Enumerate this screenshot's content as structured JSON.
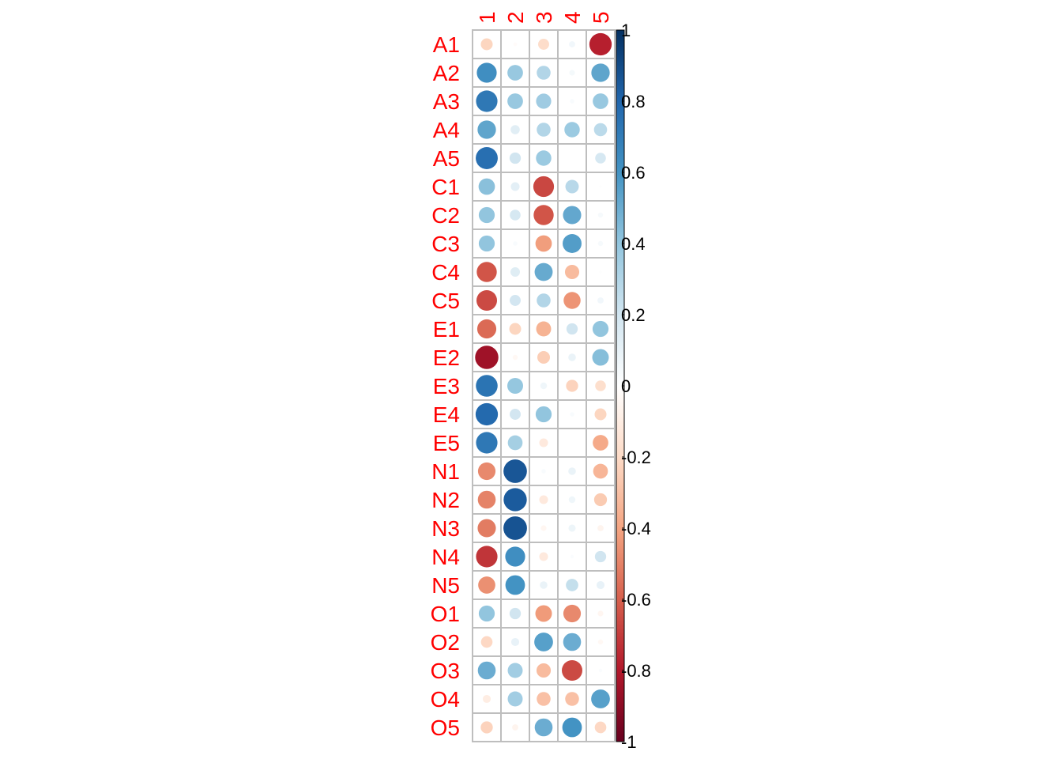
{
  "chart_data": {
    "type": "heatmap",
    "style": "circle",
    "columns": [
      "1",
      "2",
      "3",
      "4",
      "5"
    ],
    "rows": [
      "A1",
      "A2",
      "A3",
      "A4",
      "A5",
      "C1",
      "C2",
      "C3",
      "C4",
      "C5",
      "E1",
      "E2",
      "E3",
      "E4",
      "E5",
      "N1",
      "N2",
      "N3",
      "N4",
      "N5",
      "O1",
      "O2",
      "O3",
      "O4",
      "O5"
    ],
    "values": [
      [
        -0.22,
        -0.02,
        -0.19,
        0.06,
        -0.78
      ],
      [
        0.62,
        0.38,
        0.3,
        0.05,
        0.53
      ],
      [
        0.72,
        0.38,
        0.36,
        0.03,
        0.38
      ],
      [
        0.53,
        0.13,
        0.3,
        0.37,
        0.27
      ],
      [
        0.76,
        0.2,
        0.37,
        0.0,
        0.18
      ],
      [
        0.42,
        0.12,
        -0.67,
        0.28,
        0.01
      ],
      [
        0.4,
        0.18,
        -0.63,
        0.52,
        0.04
      ],
      [
        0.4,
        0.03,
        -0.42,
        0.56,
        0.04
      ],
      [
        -0.63,
        0.14,
        0.51,
        -0.32,
        0.01
      ],
      [
        -0.66,
        0.19,
        0.3,
        -0.45,
        0.06
      ],
      [
        -0.57,
        -0.22,
        -0.35,
        0.2,
        0.4
      ],
      [
        -0.85,
        -0.04,
        -0.25,
        0.09,
        0.43
      ],
      [
        0.74,
        0.39,
        0.07,
        -0.23,
        -0.18
      ],
      [
        0.78,
        0.19,
        0.4,
        0.03,
        -0.22
      ],
      [
        0.72,
        0.34,
        -0.12,
        0.0,
        -0.38
      ],
      [
        -0.48,
        0.86,
        0.03,
        0.09,
        -0.34
      ],
      [
        -0.5,
        0.84,
        -0.12,
        0.07,
        -0.26
      ],
      [
        -0.52,
        0.87,
        -0.05,
        0.08,
        -0.06
      ],
      [
        -0.72,
        0.62,
        -0.12,
        0.02,
        0.2
      ],
      [
        -0.46,
        0.6,
        0.09,
        0.24,
        0.1
      ],
      [
        0.4,
        0.2,
        -0.43,
        -0.48,
        -0.05
      ],
      [
        -0.21,
        0.1,
        0.55,
        0.5,
        -0.04
      ],
      [
        0.5,
        0.35,
        -0.32,
        -0.66,
        0.02
      ],
      [
        -0.1,
        0.35,
        -0.3,
        -0.3,
        0.55
      ],
      [
        -0.23,
        -0.06,
        0.5,
        0.6,
        -0.21
      ]
    ],
    "colorbar": {
      "min": -1,
      "max": 1,
      "ticks": [
        "1",
        "0.8",
        "0.6",
        "0.4",
        "0.2",
        "0",
        "-0.2",
        "-0.4",
        "-0.6",
        "-0.8",
        "-1"
      ]
    },
    "colors": {
      "label": "#ff0000",
      "grid": "#bebebe",
      "tick_text": "#000000",
      "scale": [
        "#67001f",
        "#b2182b",
        "#d6604d",
        "#f4a582",
        "#fddbc7",
        "#ffffff",
        "#d1e5f0",
        "#92c5de",
        "#4393c3",
        "#2166ac",
        "#053061"
      ]
    }
  }
}
